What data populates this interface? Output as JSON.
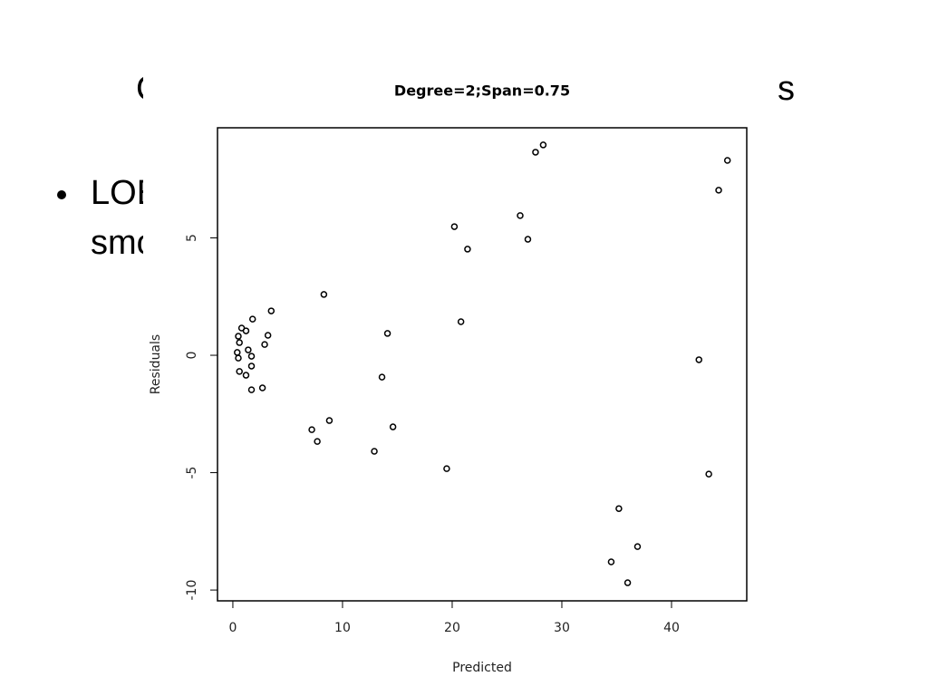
{
  "slide": {
    "title_left": "C",
    "title_right": "s",
    "bullet_line1": "LOE",
    "bullet_line2": "smo"
  },
  "chart_data": {
    "type": "scatter",
    "title": "Degree=2;Span=0.75",
    "x_label": "Predicted",
    "y_label": "Residuals",
    "xlim": [
      -1.4,
      46.86
    ],
    "ylim": [
      -10.46,
      9.69
    ],
    "xticks": [
      0,
      10,
      20,
      30,
      40
    ],
    "yticks": [
      -10,
      -5,
      0,
      5
    ],
    "color": "#000000",
    "x": [
      28.3,
      27.6,
      45.1,
      44.3,
      26.2,
      20.2,
      26.9,
      21.4,
      8.3,
      3.5,
      1.8,
      20.8,
      0.8,
      1.2,
      14.1,
      3.2,
      0.5,
      0.6,
      2.9,
      1.4,
      0.4,
      0.5,
      1.7,
      42.5,
      1.7,
      0.6,
      1.2,
      13.6,
      1.7,
      2.7,
      8.8,
      14.6,
      7.2,
      7.7,
      12.9,
      19.5,
      43.4,
      35.2,
      36.9,
      34.5,
      36.0
    ],
    "values": [
      8.96,
      8.65,
      8.3,
      7.03,
      5.95,
      5.48,
      4.94,
      4.52,
      2.59,
      1.89,
      1.54,
      1.43,
      1.16,
      1.04,
      0.93,
      0.85,
      0.81,
      0.54,
      0.46,
      0.23,
      0.12,
      -0.12,
      -0.04,
      -0.19,
      -0.46,
      -0.69,
      -0.85,
      -0.93,
      -1.47,
      -1.39,
      -2.78,
      -3.05,
      -3.17,
      -3.67,
      -4.09,
      -4.83,
      -5.06,
      -6.53,
      -8.15,
      -8.8,
      -9.69
    ]
  }
}
